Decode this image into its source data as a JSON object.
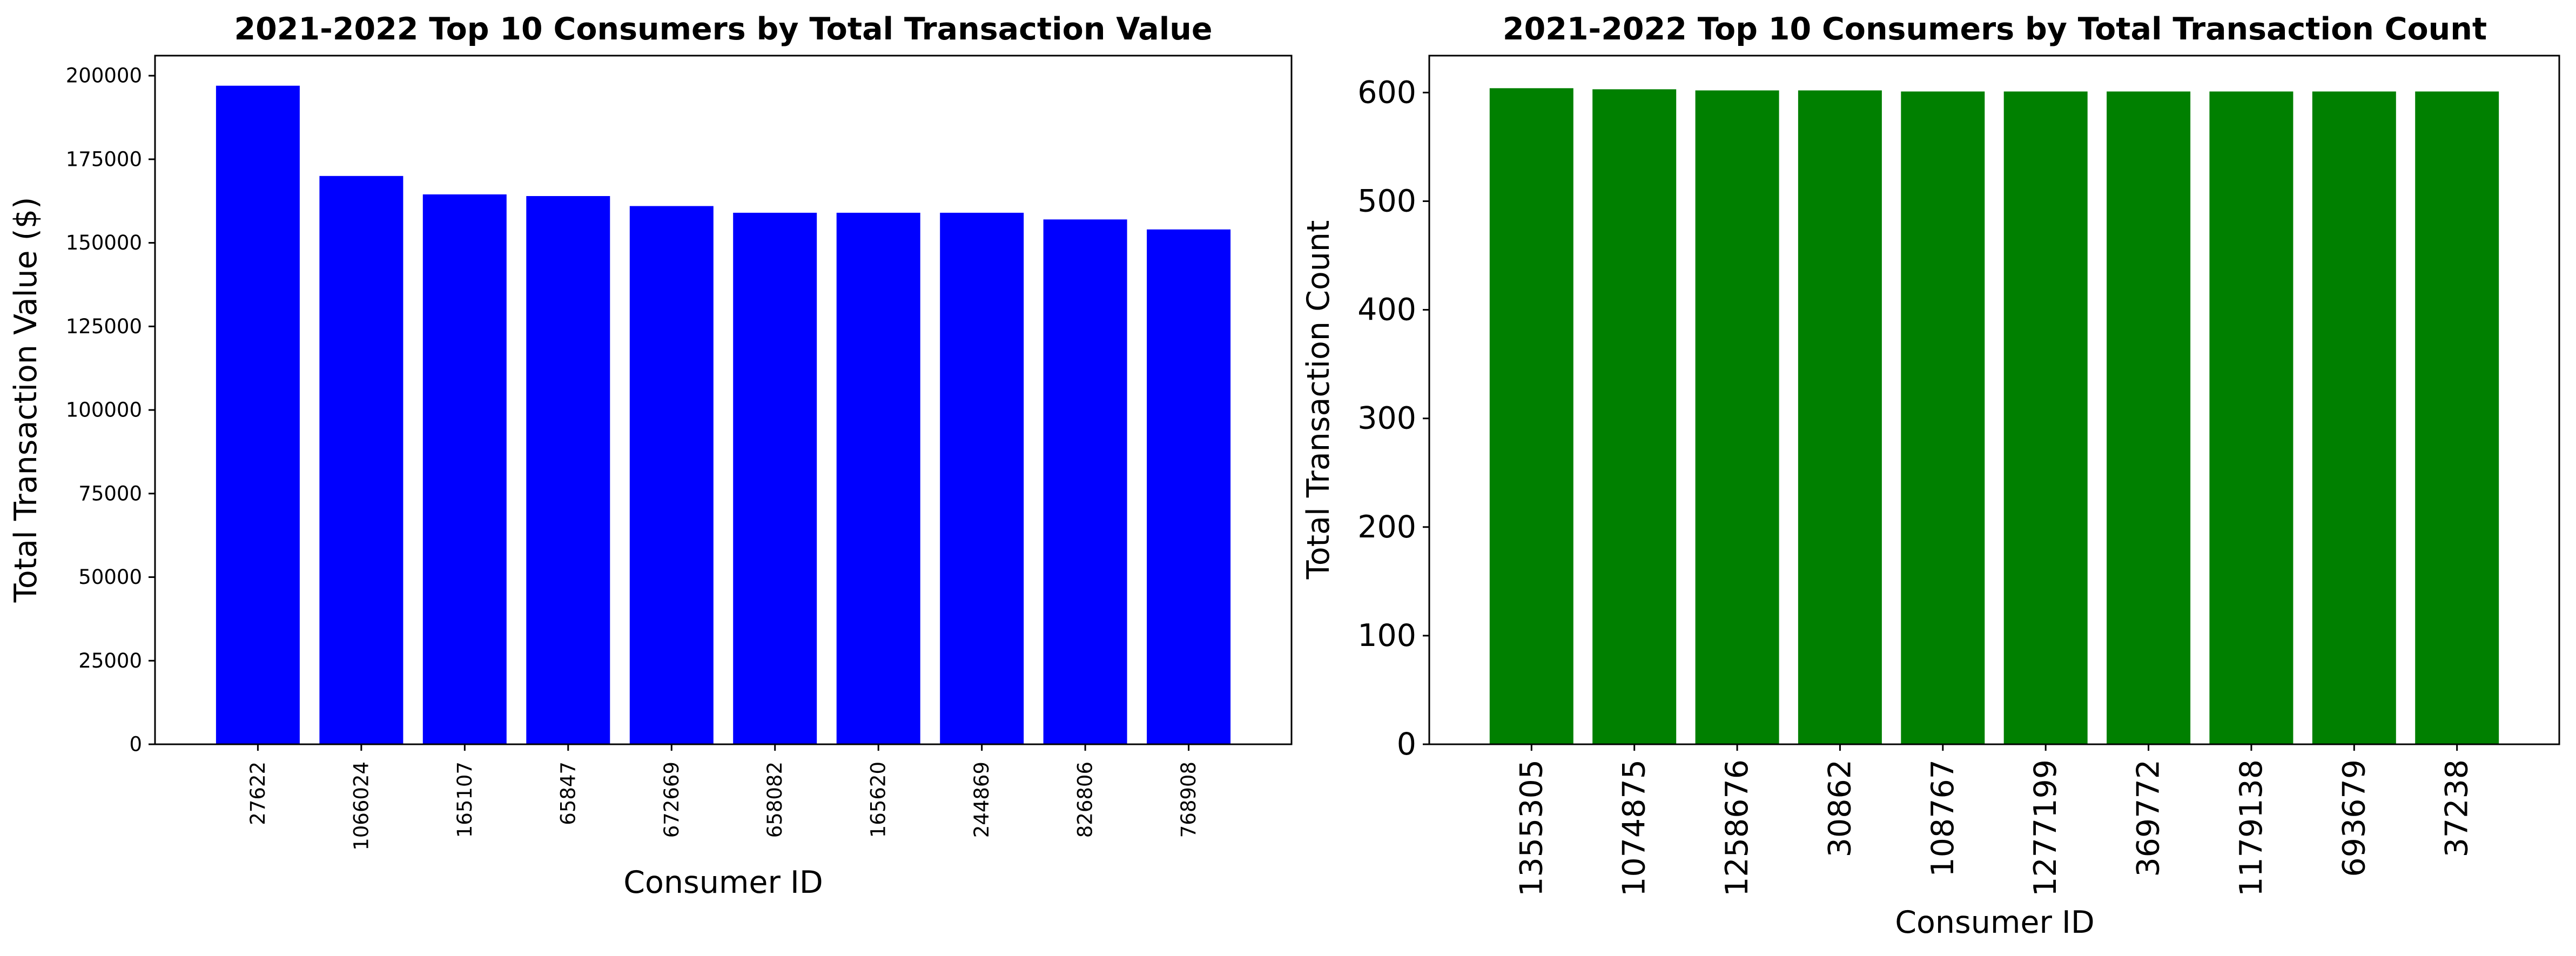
{
  "chart_data": [
    {
      "type": "bar",
      "title": "2021-2022 Top 10 Consumers by Total Transaction Value",
      "xlabel": "Consumer ID",
      "ylabel": "Total Transaction Value ($)",
      "categories": [
        "27622",
        "1066024",
        "165107",
        "65847",
        "672669",
        "658082",
        "165620",
        "244869",
        "826806",
        "768908"
      ],
      "values": [
        197000,
        170000,
        164500,
        164000,
        161000,
        159000,
        159000,
        159000,
        157000,
        154000
      ],
      "ylim": [
        0,
        206000
      ],
      "yticks": [
        0,
        25000,
        50000,
        75000,
        100000,
        125000,
        150000,
        175000,
        200000
      ],
      "color": "#0000ff",
      "grid": false
    },
    {
      "type": "bar",
      "title": "2021-2022 Top 10 Consumers by Total Transaction Count",
      "xlabel": "Consumer ID",
      "ylabel": "Total Transaction Count",
      "categories": [
        "1355305",
        "1074875",
        "1258676",
        "30862",
        "108767",
        "1277199",
        "369772",
        "1179138",
        "693679",
        "37238"
      ],
      "values": [
        604,
        603,
        602,
        602,
        601,
        601,
        601,
        601,
        601,
        601
      ],
      "ylim": [
        0,
        634
      ],
      "yticks": [
        0,
        100,
        200,
        300,
        400,
        500,
        600
      ],
      "color": "#008000",
      "grid": false
    }
  ]
}
